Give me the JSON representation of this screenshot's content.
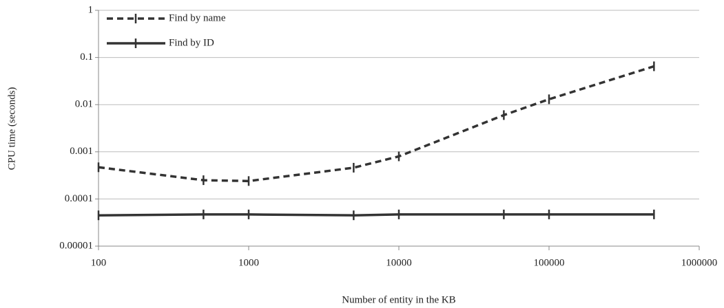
{
  "chart_data": {
    "type": "line",
    "x_label": "Number of entity in the KB",
    "y_label": "CPU time (seconds)",
    "x": [
      100,
      500,
      1000,
      5000,
      10000,
      50000,
      100000,
      500000
    ],
    "series": [
      {
        "name": "Find by name",
        "color": "#333333",
        "style": "dashed",
        "values": [
          0.00047,
          0.00025,
          0.00024,
          0.00046,
          0.0008,
          0.006,
          0.013,
          0.065
        ]
      },
      {
        "name": "Find by ID",
        "color": "#333333",
        "style": "solid",
        "values": [
          4.5e-05,
          4.7e-05,
          4.7e-05,
          4.5e-05,
          4.7e-05,
          4.7e-05,
          4.7e-05,
          4.7e-05
        ]
      }
    ],
    "xlim": [
      100,
      1000000
    ],
    "xticks": [
      100,
      1000,
      10000,
      100000,
      1000000
    ],
    "ylim": [
      1e-05,
      1
    ],
    "yticks": [
      1e-05,
      0.0001,
      0.001,
      0.01,
      0.1,
      1
    ],
    "xscale": "log",
    "yscale": "log",
    "grid": true,
    "legend": "upper left"
  }
}
